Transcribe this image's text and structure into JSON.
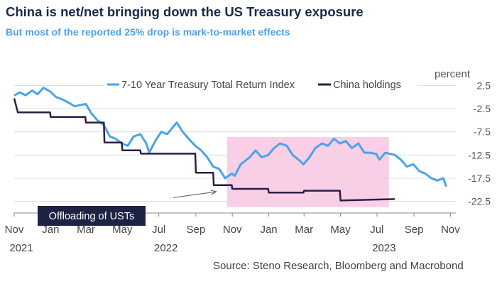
{
  "title": "China is net/net bringing down the US Treasury exposure",
  "subtitle": "But most of the reported 25% drop is mark-to-market effects",
  "unit_label": "percent",
  "source": "Source: Steno Research, Bloomberg and Macrobond",
  "colors": {
    "treasury": "#4ba3e8",
    "china": "#2d1e47",
    "highlight": "#f8c5e3",
    "title": "#1b2a4a"
  },
  "chart_data": {
    "type": "line",
    "ylim": [
      -25,
      5
    ],
    "yticks": [
      "2.5",
      "-2.5",
      "-7.5",
      "-12.5",
      "-17.5",
      "-22.5"
    ],
    "ytick_values": [
      2.5,
      -2.5,
      -7.5,
      -12.5,
      -17.5,
      -22.5
    ],
    "xlim": [
      "2021-11-01",
      "2023-11-10"
    ],
    "xticks": [
      {
        "date": "2021-11-01",
        "label": "Nov",
        "year": "2021"
      },
      {
        "date": "2022-01-01",
        "label": "Jan"
      },
      {
        "date": "2022-03-01",
        "label": "Mar"
      },
      {
        "date": "2022-05-01",
        "label": "May"
      },
      {
        "date": "2022-07-01",
        "label": "Jul",
        "year": "2022"
      },
      {
        "date": "2022-09-01",
        "label": "Sep"
      },
      {
        "date": "2022-11-01",
        "label": "Nov"
      },
      {
        "date": "2023-01-01",
        "label": "Jan"
      },
      {
        "date": "2023-03-01",
        "label": "Mar"
      },
      {
        "date": "2023-05-01",
        "label": "May"
      },
      {
        "date": "2023-07-01",
        "label": "Jul",
        "year": "2023"
      },
      {
        "date": "2023-09-01",
        "label": "Sep"
      },
      {
        "date": "2023-11-01",
        "label": "Nov"
      }
    ],
    "legend_position": "top",
    "series": [
      {
        "name": "7-10 Year Treasury Total Return Index",
        "color": "#4ba3e8",
        "points": [
          [
            "2021-11-01",
            0.3
          ],
          [
            "2021-11-10",
            1.0
          ],
          [
            "2021-11-20",
            0.4
          ],
          [
            "2021-12-01",
            1.4
          ],
          [
            "2021-12-10",
            0.6
          ],
          [
            "2021-12-20",
            2.0
          ],
          [
            "2021-12-31",
            1.2
          ],
          [
            "2022-01-10",
            0.0
          ],
          [
            "2022-01-20",
            -0.5
          ],
          [
            "2022-01-31",
            -1.2
          ],
          [
            "2022-02-10",
            -2.0
          ],
          [
            "2022-02-20",
            -1.7
          ],
          [
            "2022-03-01",
            -1.5
          ],
          [
            "2022-03-10",
            -3.5
          ],
          [
            "2022-03-20",
            -5.0
          ],
          [
            "2022-03-31",
            -6.0
          ],
          [
            "2022-04-10",
            -8.5
          ],
          [
            "2022-04-20",
            -9.0
          ],
          [
            "2022-04-30",
            -10.0
          ],
          [
            "2022-05-10",
            -10.5
          ],
          [
            "2022-05-20",
            -8.5
          ],
          [
            "2022-05-31",
            -8.0
          ],
          [
            "2022-06-10",
            -10.0
          ],
          [
            "2022-06-15",
            -12.0
          ],
          [
            "2022-06-25",
            -9.5
          ],
          [
            "2022-07-05",
            -7.5
          ],
          [
            "2022-07-15",
            -8.0
          ],
          [
            "2022-07-31",
            -5.5
          ],
          [
            "2022-08-10",
            -7.5
          ],
          [
            "2022-08-20",
            -9.0
          ],
          [
            "2022-08-31",
            -10.5
          ],
          [
            "2022-09-10",
            -11.5
          ],
          [
            "2022-09-20",
            -13.0
          ],
          [
            "2022-09-30",
            -15.0
          ],
          [
            "2022-10-10",
            -15.5
          ],
          [
            "2022-10-20",
            -17.5
          ],
          [
            "2022-10-31",
            -16.5
          ],
          [
            "2022-11-05",
            -17.0
          ],
          [
            "2022-11-15",
            -14.5
          ],
          [
            "2022-11-30",
            -13.0
          ],
          [
            "2022-12-10",
            -11.5
          ],
          [
            "2022-12-20",
            -13.0
          ],
          [
            "2022-12-31",
            -12.5
          ],
          [
            "2023-01-10",
            -11.0
          ],
          [
            "2023-01-20",
            -10.0
          ],
          [
            "2023-01-31",
            -10.5
          ],
          [
            "2023-02-10",
            -12.5
          ],
          [
            "2023-02-20",
            -13.5
          ],
          [
            "2023-02-28",
            -14.5
          ],
          [
            "2023-03-10",
            -13.0
          ],
          [
            "2023-03-20",
            -11.0
          ],
          [
            "2023-03-31",
            -10.0
          ],
          [
            "2023-04-10",
            -10.5
          ],
          [
            "2023-04-20",
            -9.0
          ],
          [
            "2023-04-30",
            -10.0
          ],
          [
            "2023-05-10",
            -9.5
          ],
          [
            "2023-05-20",
            -11.0
          ],
          [
            "2023-05-31",
            -10.0
          ],
          [
            "2023-06-10",
            -12.0
          ],
          [
            "2023-06-20",
            -12.0
          ],
          [
            "2023-06-30",
            -12.3
          ],
          [
            "2023-07-05",
            -13.5
          ],
          [
            "2023-07-15",
            -12.0
          ],
          [
            "2023-07-31",
            -12.5
          ],
          [
            "2023-08-10",
            -13.5
          ],
          [
            "2023-08-20",
            -15.0
          ],
          [
            "2023-08-31",
            -14.5
          ],
          [
            "2023-09-10",
            -16.0
          ],
          [
            "2023-09-20",
            -16.5
          ],
          [
            "2023-09-30",
            -17.5
          ],
          [
            "2023-10-10",
            -18.0
          ],
          [
            "2023-10-20",
            -17.5
          ],
          [
            "2023-10-25",
            -19.3
          ]
        ]
      },
      {
        "name": "China holdings",
        "color": "#2d1e47",
        "points": [
          [
            "2021-11-01",
            -0.3
          ],
          [
            "2021-11-07",
            -3.3
          ],
          [
            "2021-12-31",
            -3.3
          ],
          [
            "2022-01-01",
            -4.3
          ],
          [
            "2022-02-28",
            -4.3
          ],
          [
            "2022-03-01",
            -5.5
          ],
          [
            "2022-03-31",
            -5.5
          ],
          [
            "2022-04-01",
            -9.8
          ],
          [
            "2022-04-30",
            -9.8
          ],
          [
            "2022-05-01",
            -11.5
          ],
          [
            "2022-05-31",
            -11.5
          ],
          [
            "2022-06-01",
            -12.2
          ],
          [
            "2022-08-31",
            -12.2
          ],
          [
            "2022-09-01",
            -16.3
          ],
          [
            "2022-09-30",
            -16.3
          ],
          [
            "2022-10-01",
            -19.0
          ],
          [
            "2022-10-31",
            -19.0
          ],
          [
            "2022-11-01",
            -19.8
          ],
          [
            "2022-12-31",
            -19.8
          ],
          [
            "2023-01-01",
            -20.6
          ],
          [
            "2023-02-28",
            -20.6
          ],
          [
            "2023-03-01",
            -20.2
          ],
          [
            "2023-04-30",
            -20.2
          ],
          [
            "2023-05-01",
            -22.3
          ],
          [
            "2023-07-31",
            -22.0
          ]
        ]
      }
    ],
    "highlight_region": {
      "x": [
        "2022-10-23",
        "2023-07-21"
      ],
      "y": [
        -23.7,
        -8.6
      ]
    },
    "annotation": {
      "text": "Offloading of USTs",
      "arrow_from": [
        "2022-07-25",
        -21.7
      ],
      "arrow_to": [
        "2022-10-05",
        -20.4
      ]
    }
  }
}
